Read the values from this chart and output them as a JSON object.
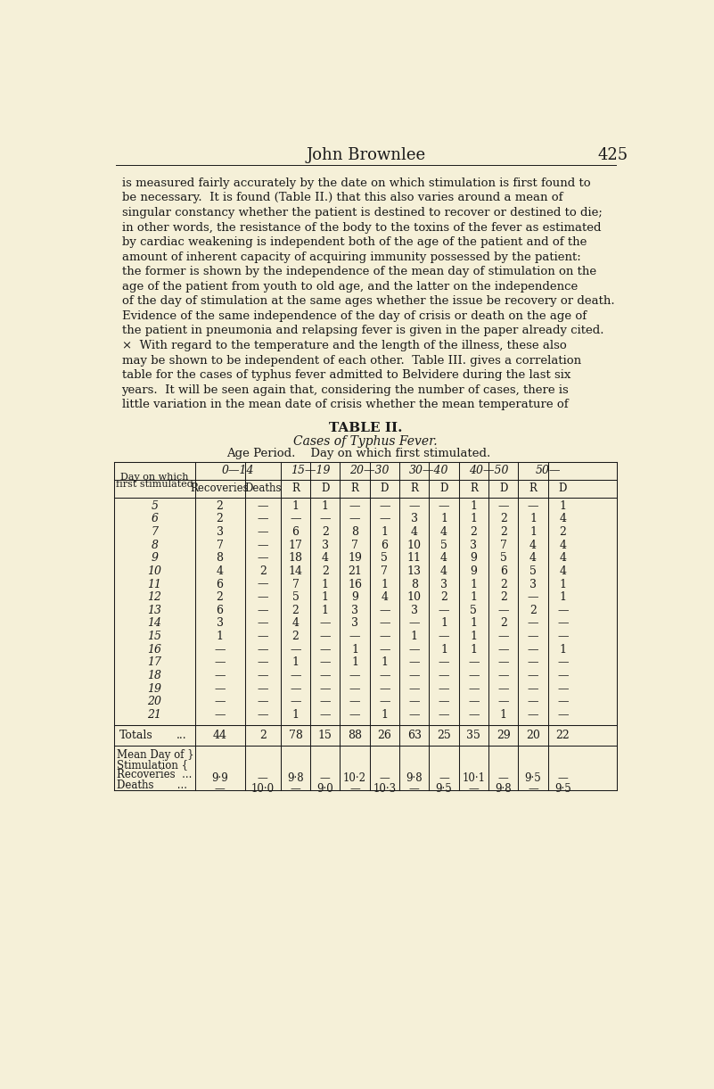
{
  "bg_color": "#f5f0d8",
  "text_color": "#1a1a1a",
  "title_header": "John Brownlee",
  "page_number": "425",
  "body_text": [
    "is measured fairly accurately by the date on which stimulation is first found to",
    "be necessary.  It is found (Table II.) that this also varies around a mean of",
    "singular constancy whether the patient is destined to recover or destined to die;",
    "in other words, the resistance of the body to the toxins of the fever as estimated",
    "by cardiac weakening is independent both of the age of the patient and of the",
    "amount of inherent capacity of acquiring immunity possessed by the patient:",
    "the former is shown by the independence of the mean day of stimulation on the",
    "age of the patient from youth to old age, and the latter on the independence",
    "of the day of stimulation at the same ages whether the issue be recovery or death.",
    "Evidence of the same independence of the day of crisis or death on the age of",
    "the patient in pneumonia and relapsing fever is given in the paper already cited.",
    "×  With regard to the temperature and the length of the illness, these also",
    "may be shown to be independent of each other.  Table III. gives a correlation",
    "table for the cases of typhus fever admitted to Belvidere during the last six",
    "years.  It will be seen again that, considering the number of cases, there is",
    "little variation in the mean date of crisis whether the mean temperature of"
  ],
  "table_title": "TABLE II.",
  "table_subtitle": "Cases of Typhus Fever.",
  "table_subtitle2": "Age Period.    Day on which first stimulated.",
  "col_groups": [
    "0—14",
    "15—19",
    "20—30",
    "30—40",
    "40—50",
    "50—"
  ],
  "col_headers": [
    "Recoveries",
    "Deaths",
    "R",
    "D",
    "R",
    "D",
    "R",
    "D",
    "R",
    "D",
    "R",
    "D"
  ],
  "row_label_header_line1": "Day on which",
  "row_label_header_line2": "first stimulated",
  "row_days": [
    "5",
    "6",
    "7",
    "8",
    "9",
    "10",
    "11",
    "12",
    "13",
    "14",
    "15",
    "16",
    "17",
    "18",
    "19",
    "20",
    "21"
  ],
  "table_data": [
    [
      "2",
      "—",
      "1",
      "1",
      "—",
      "—",
      "—",
      "—",
      "1",
      "—",
      "—",
      "1"
    ],
    [
      "2",
      "—",
      "—",
      "—",
      "—",
      "—",
      "3",
      "1",
      "1",
      "2",
      "1",
      "4"
    ],
    [
      "3",
      "—",
      "6",
      "2",
      "8",
      "1",
      "4",
      "4",
      "2",
      "2",
      "1",
      "2"
    ],
    [
      "7",
      "—",
      "17",
      "3",
      "7",
      "6",
      "10",
      "5",
      "3",
      "7",
      "4",
      "4"
    ],
    [
      "8",
      "—",
      "18",
      "4",
      "19",
      "5",
      "11",
      "4",
      "9",
      "5",
      "4",
      "4"
    ],
    [
      "4",
      "2",
      "14",
      "2",
      "21",
      "7",
      "13",
      "4",
      "9",
      "6",
      "5",
      "4"
    ],
    [
      "6",
      "—",
      "7",
      "1",
      "16",
      "1",
      "8",
      "3",
      "1",
      "2",
      "3",
      "1"
    ],
    [
      "2",
      "—",
      "5",
      "1",
      "9",
      "4",
      "10",
      "2",
      "1",
      "2",
      "—",
      "1"
    ],
    [
      "6",
      "—",
      "2",
      "1",
      "3",
      "—",
      "3",
      "—",
      "5",
      "—",
      "2",
      "—"
    ],
    [
      "3",
      "—",
      "4",
      "—",
      "3",
      "—",
      "—",
      "1",
      "1",
      "2",
      "—",
      "—"
    ],
    [
      "1",
      "—",
      "2",
      "—",
      "—",
      "—",
      "1",
      "—",
      "1",
      "—",
      "—",
      "—"
    ],
    [
      "—",
      "—",
      "—",
      "—",
      "1",
      "—",
      "—",
      "1",
      "1",
      "—",
      "—",
      "1"
    ],
    [
      "—",
      "—",
      "1",
      "—",
      "1",
      "1",
      "—",
      "—",
      "—",
      "—",
      "—",
      "—"
    ],
    [
      "—",
      "—",
      "—",
      "—",
      "—",
      "—",
      "—",
      "—",
      "—",
      "—",
      "—",
      "—"
    ],
    [
      "—",
      "—",
      "—",
      "—",
      "—",
      "—",
      "—",
      "—",
      "—",
      "—",
      "—",
      "—"
    ],
    [
      "—",
      "—",
      "—",
      "—",
      "—",
      "—",
      "—",
      "—",
      "—",
      "—",
      "—",
      "—"
    ],
    [
      "—",
      "—",
      "1",
      "—",
      "—",
      "1",
      "—",
      "—",
      "—",
      "1",
      "—",
      "—"
    ]
  ],
  "totals_row": [
    "44",
    "2",
    "78",
    "15",
    "88",
    "26",
    "63",
    "25",
    "35",
    "29",
    "20",
    "22"
  ],
  "mean_row_R": [
    "9·9",
    "—",
    "9·8",
    "—",
    "10·2",
    "—",
    "9·8",
    "—",
    "10·1",
    "—",
    "9·5",
    "—"
  ],
  "mean_row_D": [
    "—",
    "10·0",
    "—",
    "9·0",
    "—",
    "10·3",
    "—",
    "9·5",
    "—",
    "9·8",
    "—",
    "9·5"
  ]
}
